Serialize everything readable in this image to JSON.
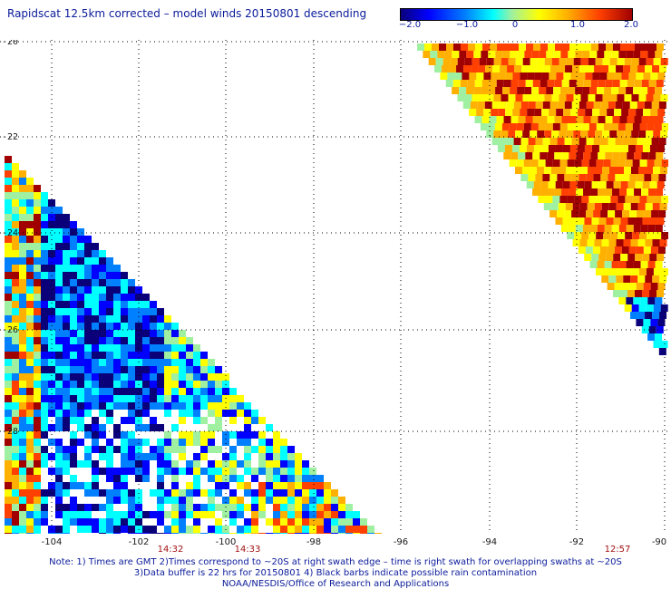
{
  "title": "Rapidscat 12.5km corrected – model winds 20150801 descending",
  "colorbar": {
    "ticks": [
      "−2.0",
      "−1.0",
      "0",
      "1.0",
      "2.0"
    ],
    "tick_values": [
      -2.0,
      -1.0,
      0,
      1.0,
      2.0
    ],
    "colors": [
      "#0a007a",
      "#0000ff",
      "#0080ff",
      "#00ffff",
      "#9ff0a0",
      "#ffff00",
      "#ffb000",
      "#ff4000",
      "#a00000"
    ]
  },
  "map": {
    "lon_range": [
      -105,
      -90
    ],
    "lat_range": [
      -20,
      -30
    ],
    "y_labels": [
      "-20",
      "-22",
      "-24",
      "-26",
      "-28"
    ],
    "x_labels": [
      "-104",
      "-102",
      "-100",
      "-98",
      "-96",
      "-94",
      "-92",
      "-90"
    ],
    "grid": "dotted",
    "swath_times": [
      "14:32",
      "14:33",
      "12:57"
    ]
  },
  "notes": [
    "Note: 1) Times are GMT 2)Times correspond to ~20S at right swath edge – time is right swath for overlapping swaths at ~20S",
    "3)Data buffer is 22 hrs for 20150801 4) Black barbs indicate possible rain contamination",
    "NOAA/NESDIS/Office of Research and Applications"
  ]
}
